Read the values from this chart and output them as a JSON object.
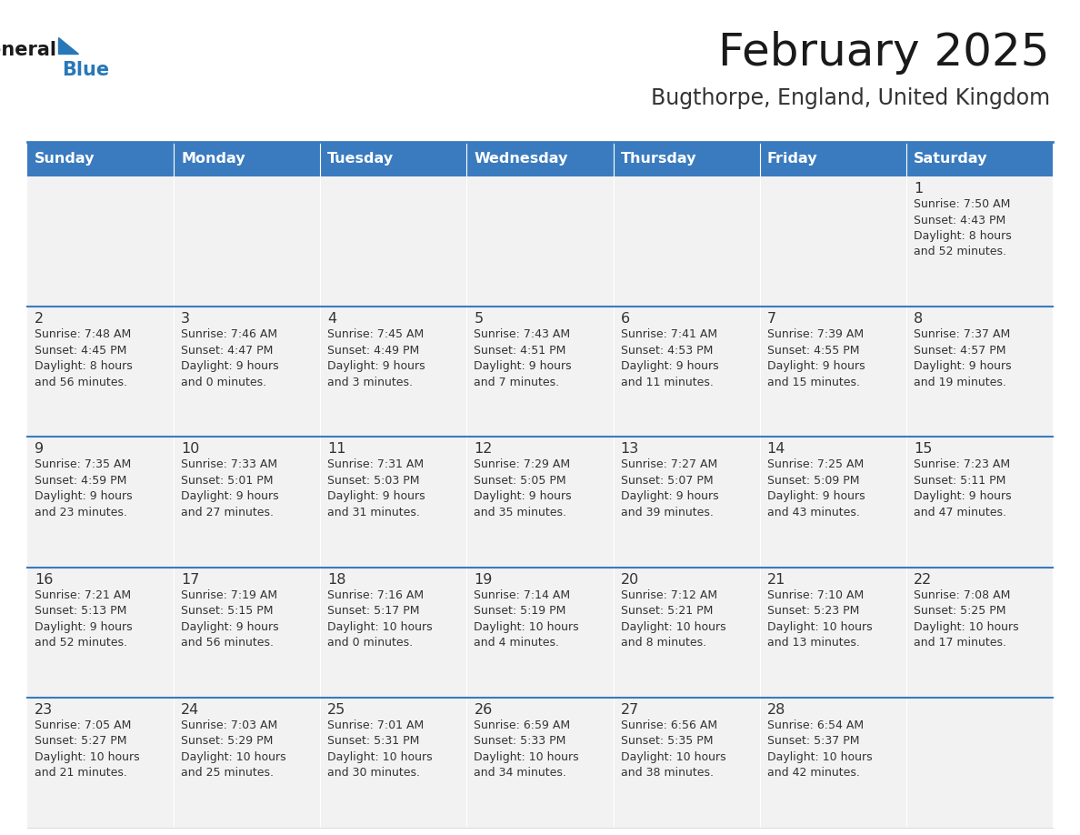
{
  "title": "February 2025",
  "subtitle": "Bugthorpe, England, United Kingdom",
  "days_of_week": [
    "Sunday",
    "Monday",
    "Tuesday",
    "Wednesday",
    "Thursday",
    "Friday",
    "Saturday"
  ],
  "header_bg": "#3A7BBF",
  "header_text": "#FFFFFF",
  "row_bg": "#F2F2F2",
  "cell_text_color": "#333333",
  "day_number_color": "#333333",
  "border_color": "#3A7BBF",
  "title_color": "#1a1a1a",
  "subtitle_color": "#333333",
  "logo_text_color": "#1a1a1a",
  "logo_blue_color": "#2878B8",
  "calendar_data": [
    [
      {
        "day": null,
        "info": null
      },
      {
        "day": null,
        "info": null
      },
      {
        "day": null,
        "info": null
      },
      {
        "day": null,
        "info": null
      },
      {
        "day": null,
        "info": null
      },
      {
        "day": null,
        "info": null
      },
      {
        "day": "1",
        "info": "Sunrise: 7:50 AM\nSunset: 4:43 PM\nDaylight: 8 hours\nand 52 minutes."
      }
    ],
    [
      {
        "day": "2",
        "info": "Sunrise: 7:48 AM\nSunset: 4:45 PM\nDaylight: 8 hours\nand 56 minutes."
      },
      {
        "day": "3",
        "info": "Sunrise: 7:46 AM\nSunset: 4:47 PM\nDaylight: 9 hours\nand 0 minutes."
      },
      {
        "day": "4",
        "info": "Sunrise: 7:45 AM\nSunset: 4:49 PM\nDaylight: 9 hours\nand 3 minutes."
      },
      {
        "day": "5",
        "info": "Sunrise: 7:43 AM\nSunset: 4:51 PM\nDaylight: 9 hours\nand 7 minutes."
      },
      {
        "day": "6",
        "info": "Sunrise: 7:41 AM\nSunset: 4:53 PM\nDaylight: 9 hours\nand 11 minutes."
      },
      {
        "day": "7",
        "info": "Sunrise: 7:39 AM\nSunset: 4:55 PM\nDaylight: 9 hours\nand 15 minutes."
      },
      {
        "day": "8",
        "info": "Sunrise: 7:37 AM\nSunset: 4:57 PM\nDaylight: 9 hours\nand 19 minutes."
      }
    ],
    [
      {
        "day": "9",
        "info": "Sunrise: 7:35 AM\nSunset: 4:59 PM\nDaylight: 9 hours\nand 23 minutes."
      },
      {
        "day": "10",
        "info": "Sunrise: 7:33 AM\nSunset: 5:01 PM\nDaylight: 9 hours\nand 27 minutes."
      },
      {
        "day": "11",
        "info": "Sunrise: 7:31 AM\nSunset: 5:03 PM\nDaylight: 9 hours\nand 31 minutes."
      },
      {
        "day": "12",
        "info": "Sunrise: 7:29 AM\nSunset: 5:05 PM\nDaylight: 9 hours\nand 35 minutes."
      },
      {
        "day": "13",
        "info": "Sunrise: 7:27 AM\nSunset: 5:07 PM\nDaylight: 9 hours\nand 39 minutes."
      },
      {
        "day": "14",
        "info": "Sunrise: 7:25 AM\nSunset: 5:09 PM\nDaylight: 9 hours\nand 43 minutes."
      },
      {
        "day": "15",
        "info": "Sunrise: 7:23 AM\nSunset: 5:11 PM\nDaylight: 9 hours\nand 47 minutes."
      }
    ],
    [
      {
        "day": "16",
        "info": "Sunrise: 7:21 AM\nSunset: 5:13 PM\nDaylight: 9 hours\nand 52 minutes."
      },
      {
        "day": "17",
        "info": "Sunrise: 7:19 AM\nSunset: 5:15 PM\nDaylight: 9 hours\nand 56 minutes."
      },
      {
        "day": "18",
        "info": "Sunrise: 7:16 AM\nSunset: 5:17 PM\nDaylight: 10 hours\nand 0 minutes."
      },
      {
        "day": "19",
        "info": "Sunrise: 7:14 AM\nSunset: 5:19 PM\nDaylight: 10 hours\nand 4 minutes."
      },
      {
        "day": "20",
        "info": "Sunrise: 7:12 AM\nSunset: 5:21 PM\nDaylight: 10 hours\nand 8 minutes."
      },
      {
        "day": "21",
        "info": "Sunrise: 7:10 AM\nSunset: 5:23 PM\nDaylight: 10 hours\nand 13 minutes."
      },
      {
        "day": "22",
        "info": "Sunrise: 7:08 AM\nSunset: 5:25 PM\nDaylight: 10 hours\nand 17 minutes."
      }
    ],
    [
      {
        "day": "23",
        "info": "Sunrise: 7:05 AM\nSunset: 5:27 PM\nDaylight: 10 hours\nand 21 minutes."
      },
      {
        "day": "24",
        "info": "Sunrise: 7:03 AM\nSunset: 5:29 PM\nDaylight: 10 hours\nand 25 minutes."
      },
      {
        "day": "25",
        "info": "Sunrise: 7:01 AM\nSunset: 5:31 PM\nDaylight: 10 hours\nand 30 minutes."
      },
      {
        "day": "26",
        "info": "Sunrise: 6:59 AM\nSunset: 5:33 PM\nDaylight: 10 hours\nand 34 minutes."
      },
      {
        "day": "27",
        "info": "Sunrise: 6:56 AM\nSunset: 5:35 PM\nDaylight: 10 hours\nand 38 minutes."
      },
      {
        "day": "28",
        "info": "Sunrise: 6:54 AM\nSunset: 5:37 PM\nDaylight: 10 hours\nand 42 minutes."
      },
      {
        "day": null,
        "info": null
      }
    ]
  ]
}
